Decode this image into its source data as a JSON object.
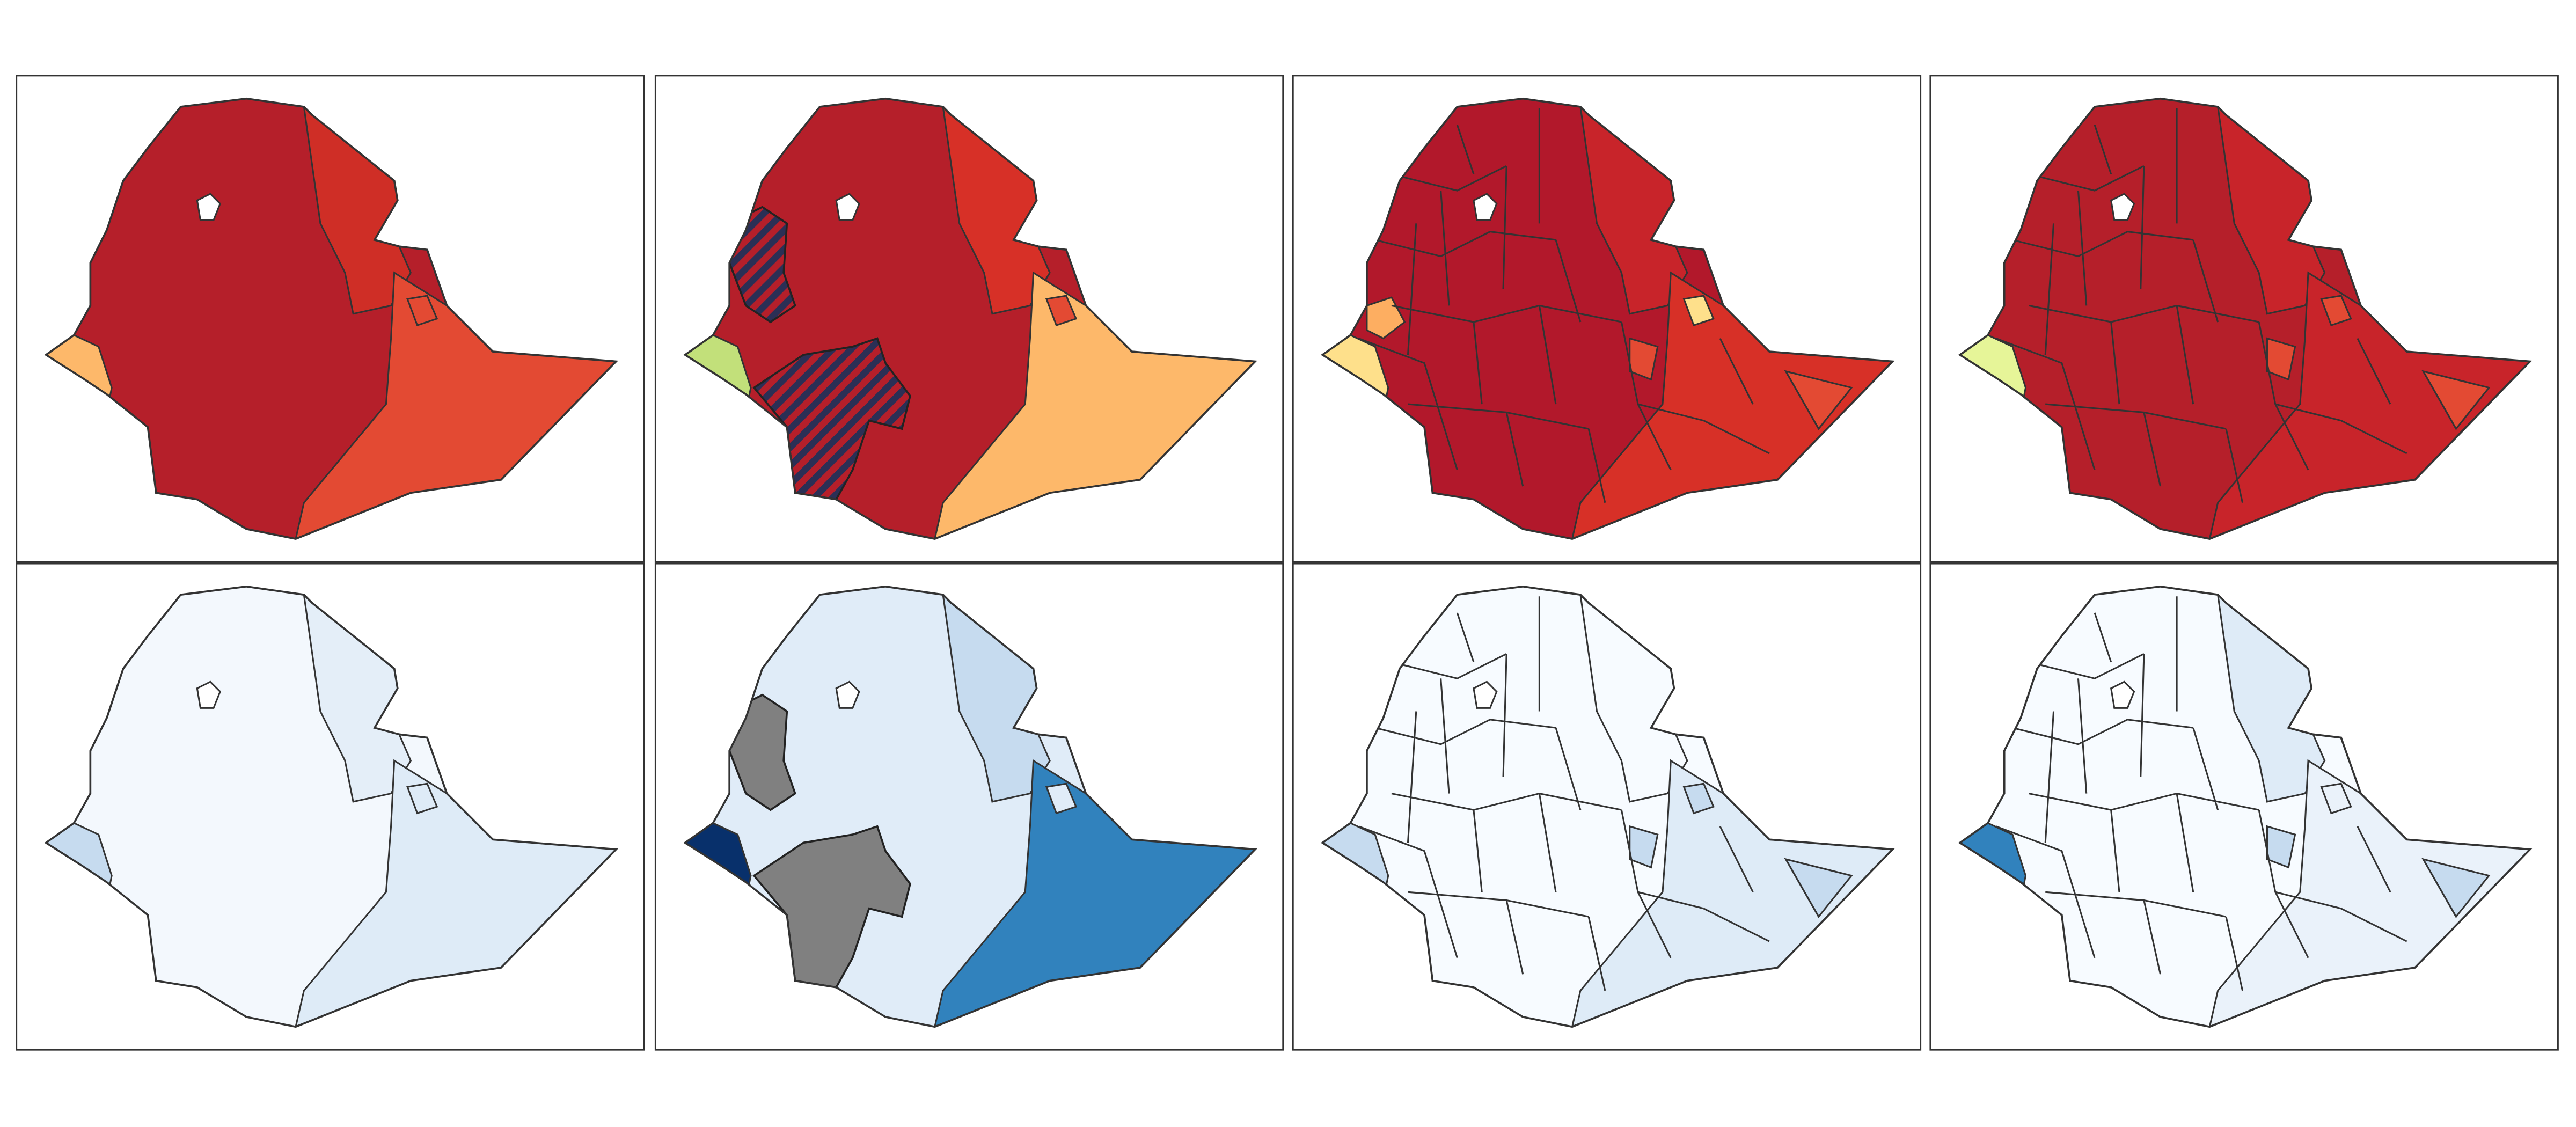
{
  "panels": [
    {
      "base": "#b51f2a",
      "regions": {
        "afar": "#cf2e26",
        "east": "#e34a33",
        "west": "#fdb86a",
        "dire": "#e34a33"
      }
    },
    {
      "base": "#b51f2a",
      "regions": {
        "afar": "#d73027",
        "east": "#fdb86a",
        "west": "#c2e07a",
        "dire": "#e34a33"
      },
      "hatch": [
        "#2b2f55",
        "#b51f2a"
      ]
    },
    {
      "base": "#b2182b",
      "regions": {
        "afar": "#c8242a",
        "east": "#d73027",
        "eastpatch": "#e34a33",
        "west": "#fee08b",
        "westpatch": "#fdae61",
        "dire": "#fee08b"
      }
    },
    {
      "base": "#b51f2a",
      "regions": {
        "afar": "#c8242a",
        "east": "#c8242a",
        "eastpatch": "#e34a33",
        "west": "#e6f598",
        "dire": "#e34a33"
      }
    },
    {
      "base": "#f3f8fd",
      "regions": {
        "afar": "#e4eef8",
        "east": "#deebf7",
        "west": "#c6dbef",
        "dire": "#deebf7"
      }
    },
    {
      "base": "#e0ecf8",
      "regions": {
        "afar": "#c6dbef",
        "east": "#3182bd",
        "west": "#08306b",
        "dire": "#e0ecf8"
      },
      "grey": "#808080"
    },
    {
      "base": "#f7fbff",
      "regions": {
        "afar": "#f7fbff",
        "east": "#deebf7",
        "eastpatch": "#c6dbef",
        "west": "#c6dbef",
        "dire": "#c6dbef"
      }
    },
    {
      "base": "#f7fbff",
      "regions": {
        "afar": "#deebf7",
        "east": "#eaf2fa",
        "eastpatch": "#c6dbef",
        "west": "#3182bd",
        "dire": "#eaf2fa"
      }
    }
  ]
}
